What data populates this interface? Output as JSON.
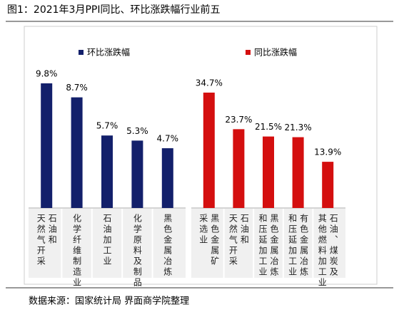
{
  "title": "图1：2021年3月PPI同比、环比涨跌幅行业前五",
  "source": "数据来源：国家统计局 界面商学院整理",
  "chart_data": [
    {
      "type": "bar",
      "categories": [
        "石油和\n天然气开采",
        "化学纤维制造业",
        "石油加工业",
        "化学原料及制品",
        "黑色金属冶炼"
      ],
      "series": [
        {
          "name": "环比涨跌幅",
          "color": "#13206b",
          "values": [
            9.8,
            8.7,
            5.7,
            5.3,
            4.7
          ],
          "value_labels": [
            "9.8%",
            "8.7%",
            "5.7%",
            "5.3%",
            "4.7%"
          ]
        }
      ]
    },
    {
      "type": "bar",
      "categories": [
        "黑色金属矿\n采选业",
        "石油和\n天然气开采",
        "黑色金属冶炼\n和压延加工业",
        "有色金属冶炼\n和压延加工业",
        "石油、煤炭及\n其他燃料加工业"
      ],
      "series": [
        {
          "name": "同比涨跌幅",
          "color": "#d40f0f",
          "values": [
            34.7,
            23.7,
            21.5,
            21.3,
            13.9
          ],
          "value_labels": [
            "34.7%",
            "23.7%",
            "21.5%",
            "21.3%",
            "13.9%"
          ]
        }
      ]
    }
  ]
}
